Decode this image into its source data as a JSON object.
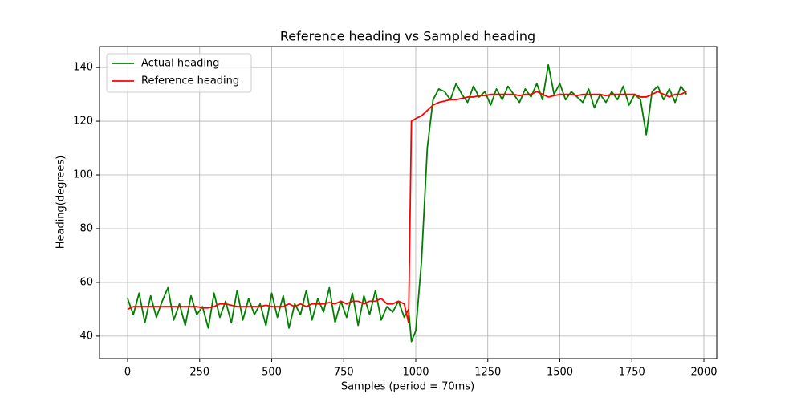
{
  "chart_data": {
    "type": "line",
    "title": "Reference heading vs Sampled heading",
    "x_label": "Samples (period = 70ms)",
    "y_label": "Heading(degrees)",
    "x": [
      0,
      20,
      40,
      60,
      80,
      100,
      120,
      140,
      160,
      180,
      200,
      220,
      240,
      260,
      280,
      300,
      320,
      340,
      360,
      380,
      400,
      420,
      440,
      460,
      480,
      500,
      520,
      540,
      560,
      580,
      600,
      620,
      640,
      660,
      680,
      700,
      720,
      740,
      760,
      780,
      800,
      820,
      840,
      860,
      880,
      900,
      920,
      940,
      960,
      975,
      985,
      1000,
      1020,
      1040,
      1060,
      1080,
      1100,
      1120,
      1140,
      1160,
      1180,
      1200,
      1220,
      1240,
      1260,
      1280,
      1300,
      1320,
      1340,
      1360,
      1380,
      1400,
      1420,
      1440,
      1460,
      1480,
      1500,
      1520,
      1540,
      1560,
      1580,
      1600,
      1620,
      1640,
      1660,
      1680,
      1700,
      1720,
      1740,
      1760,
      1780,
      1800,
      1820,
      1840,
      1860,
      1880,
      1900,
      1920,
      1940
    ],
    "series": [
      {
        "name": "Actual heading",
        "color": "#008000",
        "values": [
          54,
          48,
          56,
          45,
          55,
          47,
          53,
          58,
          46,
          52,
          44,
          55,
          48,
          51,
          43,
          56,
          47,
          53,
          45,
          57,
          46,
          54,
          48,
          52,
          44,
          56,
          47,
          55,
          43,
          52,
          48,
          57,
          46,
          54,
          49,
          58,
          45,
          53,
          47,
          56,
          44,
          55,
          48,
          57,
          46,
          51,
          49,
          53,
          47,
          50,
          38,
          42,
          68,
          110,
          128,
          132,
          131,
          128,
          134,
          130,
          127,
          133,
          129,
          131,
          126,
          132,
          128,
          133,
          130,
          127,
          132,
          129,
          134,
          128,
          141,
          130,
          134,
          128,
          131,
          129,
          127,
          132,
          125,
          130,
          127,
          131,
          128,
          133,
          126,
          130,
          128,
          115,
          131,
          133,
          128,
          132,
          127,
          133,
          130
        ]
      },
      {
        "name": "Reference heading",
        "color": "#ff0000",
        "values": [
          50,
          51,
          51,
          51,
          51,
          51,
          51,
          51,
          51,
          51,
          51,
          51,
          51,
          50.5,
          50.5,
          51,
          52,
          52,
          51.5,
          51,
          51,
          51,
          51,
          51,
          51.5,
          51,
          51,
          51,
          52,
          51,
          52,
          51,
          52,
          52,
          52,
          52.5,
          52,
          53,
          52,
          53,
          53,
          52,
          53,
          53,
          54,
          52,
          52,
          53,
          52,
          45,
          120,
          121,
          122,
          124,
          126,
          127,
          127.5,
          128,
          128,
          128.5,
          129,
          129,
          129.5,
          129.5,
          130,
          130,
          130,
          130,
          130,
          129.5,
          130,
          130,
          131,
          130,
          129,
          129.5,
          130,
          130,
          130,
          129.5,
          130,
          130,
          130,
          130,
          129.5,
          130,
          130,
          130,
          130,
          130,
          129,
          129,
          130,
          131,
          130,
          129,
          130,
          130,
          131
        ]
      }
    ],
    "xlim": [
      -97.5,
      2044.6
    ],
    "ylim": [
      31.6,
      147.8
    ],
    "xticks": [
      0,
      250,
      500,
      750,
      1000,
      1250,
      1500,
      1750,
      2000
    ],
    "yticks": [
      40,
      60,
      80,
      100,
      120,
      140
    ],
    "grid": true,
    "legend": "upper-left"
  }
}
